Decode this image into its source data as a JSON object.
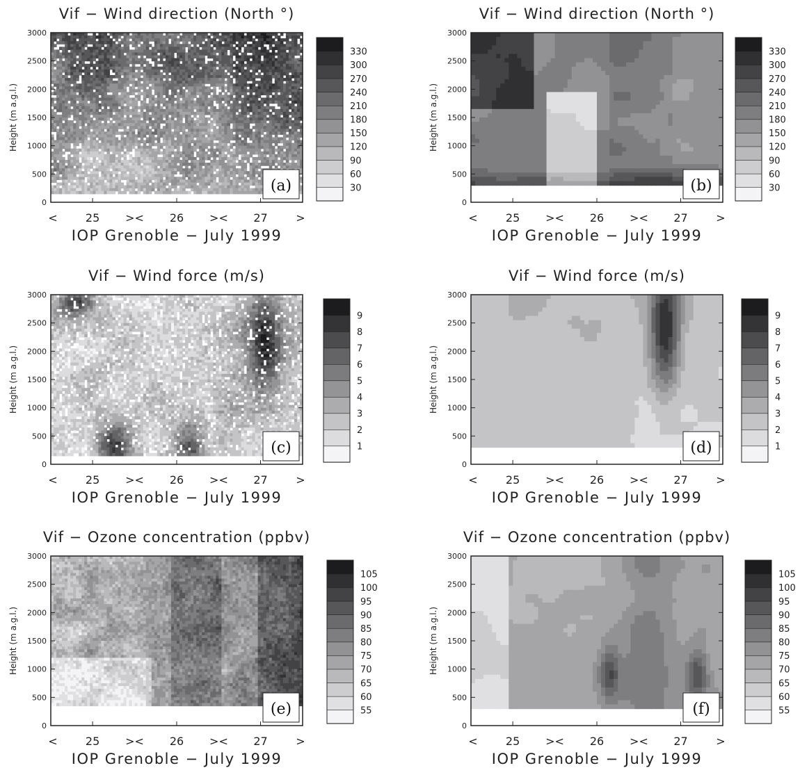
{
  "chart_data": [
    {
      "panel": "a",
      "type": "heatmap",
      "style": "observed",
      "title": "Vif − Wind direction (North °)",
      "xlabel": "IOP Grenoble − July 1999",
      "ylabel": "Height (m a.g.l.)",
      "x_ticks": [
        "25",
        "26",
        "27"
      ],
      "x_markers": [
        "<",
        "><",
        "><",
        ">"
      ],
      "y_ticks": [
        0,
        500,
        1000,
        1500,
        2000,
        2500,
        3000
      ],
      "ylim": [
        0,
        3000
      ],
      "colorbar_levels": [
        30,
        60,
        90,
        120,
        150,
        180,
        210,
        240,
        270,
        300,
        330
      ],
      "grid": false
    },
    {
      "panel": "b",
      "type": "heatmap",
      "style": "simulated",
      "title": "Vif − Wind direction (North °)",
      "xlabel": "IOP Grenoble − July 1999",
      "ylabel": "Height (m a.g.l.)",
      "x_ticks": [
        "25",
        "26",
        "27"
      ],
      "x_markers": [
        "<",
        "><",
        "><",
        ">"
      ],
      "y_ticks": [
        0,
        500,
        1000,
        1500,
        2000,
        2500,
        3000
      ],
      "ylim": [
        0,
        3000
      ],
      "colorbar_levels": [
        30,
        60,
        90,
        120,
        150,
        180,
        210,
        240,
        270,
        300,
        330
      ],
      "grid": false
    },
    {
      "panel": "c",
      "type": "heatmap",
      "style": "observed",
      "title": "Vif − Wind force (m/s)",
      "xlabel": "IOP Grenoble − July 1999",
      "ylabel": "Height (m a.g.l.)",
      "x_ticks": [
        "25",
        "26",
        "27"
      ],
      "x_markers": [
        "<",
        "><",
        "><",
        ">"
      ],
      "y_ticks": [
        0,
        500,
        1000,
        1500,
        2000,
        2500,
        3000
      ],
      "ylim": [
        0,
        3000
      ],
      "colorbar_levels": [
        1,
        2,
        3,
        4,
        5,
        6,
        7,
        8,
        9
      ],
      "grid": false
    },
    {
      "panel": "d",
      "type": "heatmap",
      "style": "simulated",
      "title": "Vif − Wind force (m/s)",
      "xlabel": "IOP Grenoble − July 1999",
      "ylabel": "Height (m a.g.l.)",
      "x_ticks": [
        "25",
        "26",
        "27"
      ],
      "x_markers": [
        "<",
        "><",
        "><",
        ">"
      ],
      "y_ticks": [
        0,
        500,
        1000,
        1500,
        2000,
        2500,
        3000
      ],
      "ylim": [
        0,
        3000
      ],
      "colorbar_levels": [
        1,
        2,
        3,
        4,
        5,
        6,
        7,
        8,
        9
      ],
      "grid": false
    },
    {
      "panel": "e",
      "type": "heatmap",
      "style": "observed",
      "title": "Vif − Ozone concentration (ppbv)",
      "xlabel": "IOP Grenoble − July 1999",
      "ylabel": "Height (m a.g.l.)",
      "x_ticks": [
        "25",
        "26",
        "27"
      ],
      "x_markers": [
        "<",
        "><",
        "><",
        ">"
      ],
      "y_ticks": [
        0,
        500,
        1000,
        1500,
        2000,
        2500,
        3000
      ],
      "ylim": [
        0,
        3000
      ],
      "colorbar_levels": [
        55,
        60,
        65,
        70,
        75,
        80,
        85,
        90,
        95,
        100,
        105
      ],
      "grid": false
    },
    {
      "panel": "f",
      "type": "heatmap",
      "style": "simulated",
      "title": "Vif − Ozone concentration (ppbv)",
      "xlabel": "IOP Grenoble − July 1999",
      "ylabel": "Height (m a.g.l.)",
      "x_ticks": [
        "25",
        "26",
        "27"
      ],
      "x_markers": [
        "<",
        "><",
        "><",
        ">"
      ],
      "y_ticks": [
        0,
        500,
        1000,
        1500,
        2000,
        2500,
        3000
      ],
      "ylim": [
        0,
        3000
      ],
      "colorbar_levels": [
        55,
        60,
        65,
        70,
        75,
        80,
        85,
        90,
        95,
        100,
        105
      ],
      "grid": false
    }
  ],
  "panel_labels": [
    "(a)",
    "(b)",
    "(c)",
    "(d)",
    "(e)",
    "(f)"
  ],
  "colors": {
    "lightest": "#f4f4f6",
    "darkest": "#1c1c1c",
    "frame": "#222222"
  }
}
